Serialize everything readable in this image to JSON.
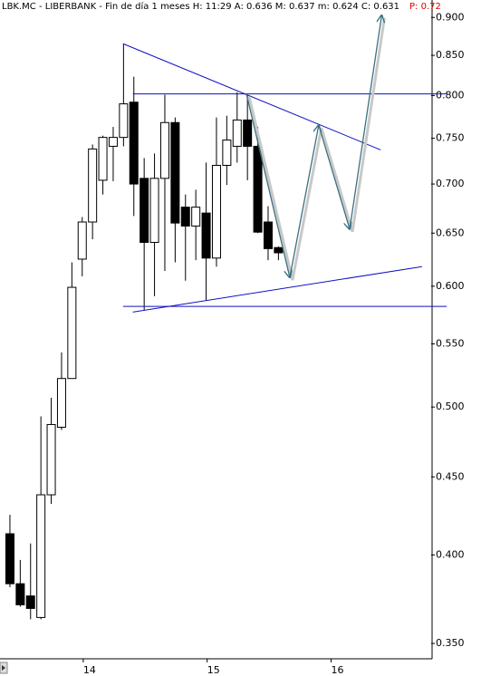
{
  "chart_data": {
    "type": "candlestick",
    "title": "LBK.MC - LIBERBANK - Fin de día 1 meses  H: 11:29  A: 0.636  M: 0.637  m: 0.624  C: 0.631",
    "annotation": "P: 0.72",
    "annotation_color": "#e00000",
    "log_scale": true,
    "x": [
      0,
      1,
      2,
      3,
      4,
      5,
      6,
      7,
      8,
      9,
      10,
      11,
      12,
      13,
      14,
      15,
      16,
      17,
      18,
      19,
      20,
      21,
      22,
      23,
      24,
      25,
      26
    ],
    "open": [
      0.413,
      0.383,
      0.376,
      0.364,
      0.438,
      0.485,
      0.522,
      0.625,
      0.661,
      0.704,
      0.741,
      0.751,
      0.792,
      0.706,
      0.641,
      0.706,
      0.768,
      0.676,
      0.657,
      0.67,
      0.626,
      0.72,
      0.741,
      0.771,
      0.741,
      0.661,
      0.636
    ],
    "high": [
      0.425,
      0.397,
      0.407,
      0.493,
      0.507,
      0.543,
      0.622,
      0.666,
      0.743,
      0.753,
      0.763,
      0.865,
      0.823,
      0.728,
      0.733,
      0.801,
      0.774,
      0.689,
      0.694,
      0.723,
      0.774,
      0.776,
      0.804,
      0.801,
      0.763,
      0.677,
      0.637
    ],
    "low": [
      0.381,
      0.37,
      0.363,
      0.363,
      0.432,
      0.483,
      0.522,
      0.609,
      0.644,
      0.689,
      0.703,
      0.741,
      0.667,
      0.579,
      0.591,
      0.614,
      0.622,
      0.605,
      0.624,
      0.587,
      0.618,
      0.699,
      0.723,
      0.704,
      0.65,
      0.624,
      0.624
    ],
    "close": [
      0.383,
      0.371,
      0.369,
      0.438,
      0.487,
      0.522,
      0.599,
      0.661,
      0.738,
      0.751,
      0.751,
      0.79,
      0.7,
      0.641,
      0.706,
      0.768,
      0.66,
      0.657,
      0.676,
      0.626,
      0.72,
      0.748,
      0.771,
      0.741,
      0.651,
      0.635,
      0.631
    ],
    "up_color": "#ffffff",
    "down_color": "#000000",
    "drawings": [
      {
        "color": "#1010c0",
        "x": [
          10.96,
          35.9
        ],
        "y": [
          0.865,
          0.737
        ]
      },
      {
        "color": "#1010c0",
        "x": [
          11.9,
          42.3
        ],
        "y": [
          0.802,
          0.802
        ]
      },
      {
        "color": "#1010c0",
        "x": [
          10.96,
          42.3
        ],
        "y": [
          0.582,
          0.582
        ]
      },
      {
        "color": "#1010c0",
        "x": [
          11.9,
          39.9
        ],
        "y": [
          0.577,
          0.618
        ]
      },
      {
        "color": "#3a7080",
        "arrow": true,
        "x": [
          22.9,
          27.1,
          29.9,
          32.9,
          36.0
        ],
        "y": [
          0.802,
          0.608,
          0.765,
          0.654,
          0.903
        ]
      }
    ],
    "xlim": [
      -0.96,
      40.79
    ],
    "ylim": [
      0.342,
      0.924
    ],
    "xticks": [
      {
        "value": 7.1,
        "label": "14"
      },
      {
        "value": 19.1,
        "label": "15"
      },
      {
        "value": 31.1,
        "label": "16"
      }
    ],
    "yticks": [
      {
        "value": 0.9,
        "label": "0.900"
      },
      {
        "value": 0.85,
        "label": "0.850"
      },
      {
        "value": 0.8,
        "label": "0.800"
      },
      {
        "value": 0.75,
        "label": "0.750"
      },
      {
        "value": 0.7,
        "label": "0.700"
      },
      {
        "value": 0.65,
        "label": "0.650"
      },
      {
        "value": 0.6,
        "label": "0.600"
      },
      {
        "value": 0.55,
        "label": "0.550"
      },
      {
        "value": 0.5,
        "label": "0.500"
      },
      {
        "value": 0.45,
        "label": "0.450"
      },
      {
        "value": 0.4,
        "label": "0.400"
      },
      {
        "value": 0.35,
        "label": "0.350"
      }
    ]
  }
}
